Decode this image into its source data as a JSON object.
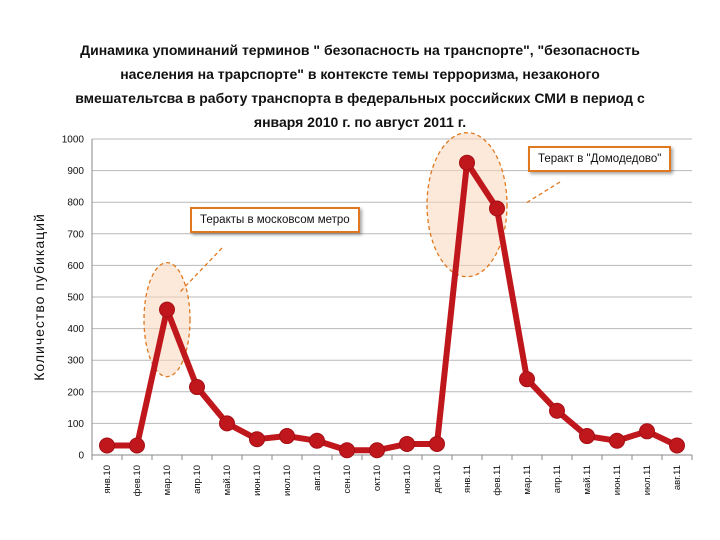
{
  "chart_data": {
    "type": "line",
    "title_lines": [
      "Динамика упоминаний  терминов \" безопасность  на транспорте\", \"безопасность",
      "населения на трарспорте\"  в контексте темы терроризма, незаконого",
      "вмешательтсва  в работу транспорта  в федеральных российских  СМИ в период с",
      "января 2010 г. по август 2011 г."
    ],
    "ylabel": "Количество  пубикаций",
    "xlabel": "",
    "ylim": [
      0,
      1000
    ],
    "yticks": [
      0,
      100,
      200,
      300,
      400,
      500,
      600,
      700,
      800,
      900,
      1000
    ],
    "grid": "horizontal",
    "line_color": "#c0171d",
    "categories": [
      "янв.10",
      "фев.10",
      "мар.10",
      "апр.10",
      "май.10",
      "июн.10",
      "июл.10",
      "авг.10",
      "сен.10",
      "окт.10",
      "ноя.10",
      "дек.10",
      "янв.11",
      "фев.11",
      "мар.11",
      "апр.11",
      "май.11",
      "июн.11",
      "июл.11",
      "авг.11"
    ],
    "series": [
      {
        "values": [
          30,
          30,
          460,
          215,
          100,
          50,
          60,
          45,
          15,
          15,
          35,
          35,
          925,
          780,
          240,
          140,
          60,
          45,
          75,
          30
        ]
      }
    ],
    "annotations": [
      {
        "text": "Теракты в московсом метро",
        "point_index": 2
      },
      {
        "text": "Теракт в \"Домодедово\"",
        "point_index": 12
      }
    ]
  }
}
